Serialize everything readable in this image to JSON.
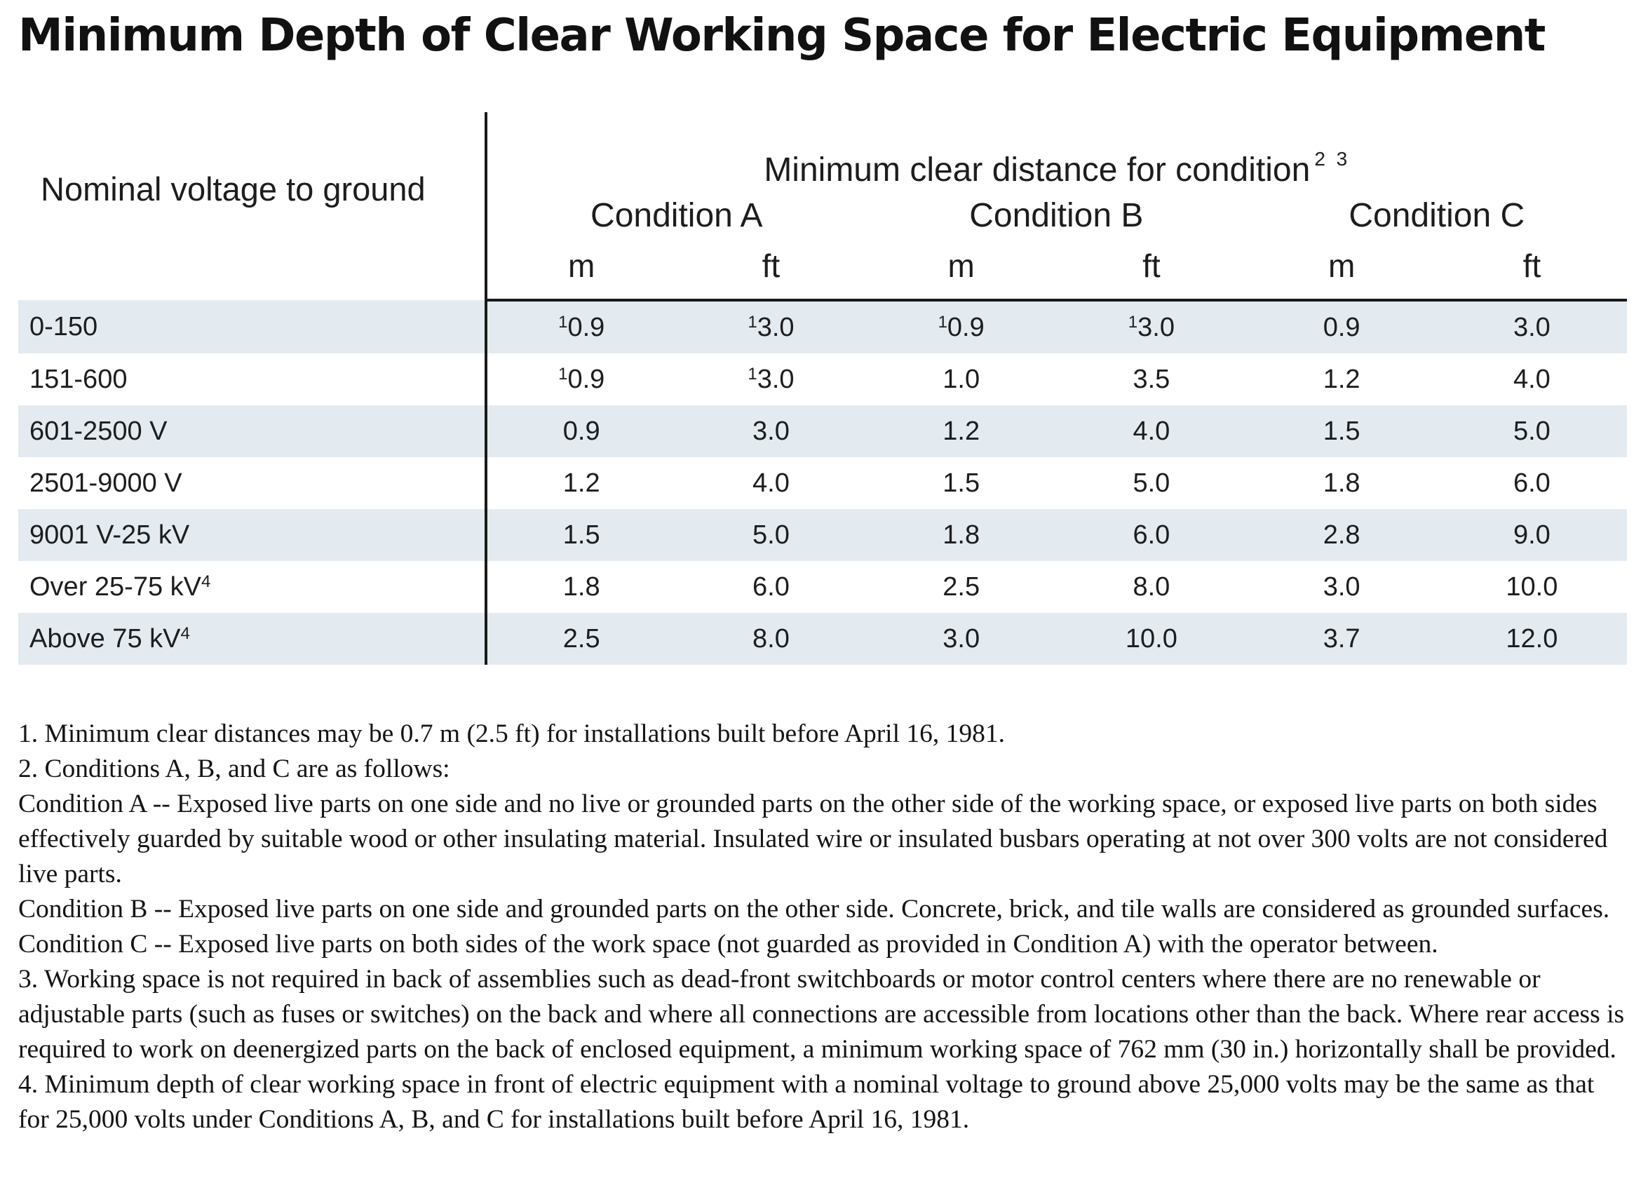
{
  "title": "Minimum Depth of Clear Working Space for Electric Equipment",
  "table": {
    "voltage_header": "Nominal voltage to ground",
    "group_header": "Minimum clear distance for condition",
    "group_header_sup": "2 3",
    "conditions": [
      "Condition A",
      "Condition B",
      "Condition C"
    ],
    "units": [
      "m",
      "ft",
      "m",
      "ft",
      "m",
      "ft"
    ],
    "rows": [
      {
        "voltage": "0-150",
        "voltage_sup": "",
        "cells": [
          {
            "sup": "1",
            "val": "0.9"
          },
          {
            "sup": "1",
            "val": "3.0"
          },
          {
            "sup": "1",
            "val": "0.9"
          },
          {
            "sup": "1",
            "val": "3.0"
          },
          {
            "sup": "",
            "val": "0.9"
          },
          {
            "sup": "",
            "val": "3.0"
          }
        ]
      },
      {
        "voltage": "151-600",
        "voltage_sup": "",
        "cells": [
          {
            "sup": "1",
            "val": "0.9"
          },
          {
            "sup": "1",
            "val": "3.0"
          },
          {
            "sup": "",
            "val": "1.0"
          },
          {
            "sup": "",
            "val": "3.5"
          },
          {
            "sup": "",
            "val": "1.2"
          },
          {
            "sup": "",
            "val": "4.0"
          }
        ]
      },
      {
        "voltage": "601-2500 V",
        "voltage_sup": "",
        "cells": [
          {
            "sup": "",
            "val": "0.9"
          },
          {
            "sup": "",
            "val": "3.0"
          },
          {
            "sup": "",
            "val": "1.2"
          },
          {
            "sup": "",
            "val": "4.0"
          },
          {
            "sup": "",
            "val": "1.5"
          },
          {
            "sup": "",
            "val": "5.0"
          }
        ]
      },
      {
        "voltage": "2501-9000 V",
        "voltage_sup": "",
        "cells": [
          {
            "sup": "",
            "val": "1.2"
          },
          {
            "sup": "",
            "val": "4.0"
          },
          {
            "sup": "",
            "val": "1.5"
          },
          {
            "sup": "",
            "val": "5.0"
          },
          {
            "sup": "",
            "val": "1.8"
          },
          {
            "sup": "",
            "val": "6.0"
          }
        ]
      },
      {
        "voltage": "9001 V-25 kV",
        "voltage_sup": "",
        "cells": [
          {
            "sup": "",
            "val": "1.5"
          },
          {
            "sup": "",
            "val": "5.0"
          },
          {
            "sup": "",
            "val": "1.8"
          },
          {
            "sup": "",
            "val": "6.0"
          },
          {
            "sup": "",
            "val": "2.8"
          },
          {
            "sup": "",
            "val": "9.0"
          }
        ]
      },
      {
        "voltage": "Over 25-75 kV",
        "voltage_sup": "4",
        "cells": [
          {
            "sup": "",
            "val": "1.8"
          },
          {
            "sup": "",
            "val": "6.0"
          },
          {
            "sup": "",
            "val": "2.5"
          },
          {
            "sup": "",
            "val": "8.0"
          },
          {
            "sup": "",
            "val": "3.0"
          },
          {
            "sup": "",
            "val": "10.0"
          }
        ]
      },
      {
        "voltage": "Above 75 kV",
        "voltage_sup": "4",
        "cells": [
          {
            "sup": "",
            "val": "2.5"
          },
          {
            "sup": "",
            "val": "8.0"
          },
          {
            "sup": "",
            "val": "3.0"
          },
          {
            "sup": "",
            "val": "10.0"
          },
          {
            "sup": "",
            "val": "3.7"
          },
          {
            "sup": "",
            "val": "12.0"
          }
        ]
      }
    ]
  },
  "notes": [
    "1. Minimum clear distances may be 0.7 m (2.5 ft) for installations built before April 16, 1981.",
    "2. Conditions A, B, and C are as follows:",
    "Condition A -- Exposed live parts on one side and no live or grounded parts on the other side of the working space, or exposed live parts on both sides effectively guarded by suitable wood or other insulating material. Insulated wire or insulated busbars operating at not over 300 volts are not considered live parts.",
    "Condition B -- Exposed live parts on one side and grounded parts on the other side. Concrete, brick, and tile walls are considered as grounded surfaces.",
    "Condition C -- Exposed live parts on both sides of the work space (not guarded as provided in Condition A) with the operator between.",
    "3. Working space is not required in back of assemblies such as dead-front switchboards or motor control centers where there are no renewable or adjustable parts (such as fuses or switches) on the back and where all connections are accessible from locations other than the back. Where rear access is required to work on deenergized parts on the back of enclosed equipment, a minimum working space of 762 mm (30 in.) horizontally shall be provided.",
    "4. Minimum depth of clear working space in front of electric equipment with a nominal voltage to ground above 25,000 volts may be the same as that for 25,000 volts under Conditions A, B, and C for installations built before April 16, 1981."
  ]
}
